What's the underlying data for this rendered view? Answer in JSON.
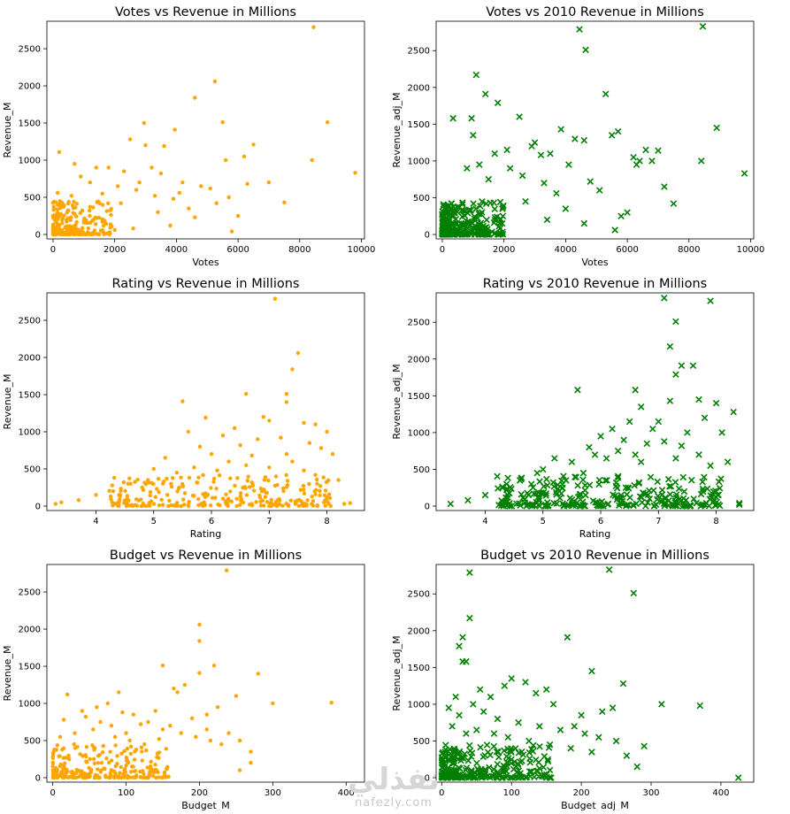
{
  "watermark": {
    "arabic": "نفذلي",
    "latin": "nafezly.com"
  },
  "chart_data": [
    {
      "type": "scatter",
      "title": "Votes vs Revenue in Millions",
      "xlabel": "Votes",
      "ylabel": "Revenue_M",
      "xlim": [
        -200,
        10100
      ],
      "ylim": [
        -60,
        2870
      ],
      "xticks": [
        0,
        2000,
        4000,
        6000,
        8000,
        10000
      ],
      "yticks": [
        0,
        500,
        1000,
        1500,
        2000,
        2500
      ],
      "marker": "dot",
      "color": "#ffa500",
      "points": [
        [
          8450,
          2790
        ],
        [
          5250,
          2060
        ],
        [
          4600,
          1840
        ],
        [
          8900,
          1510
        ],
        [
          5500,
          1510
        ],
        [
          2950,
          1500
        ],
        [
          3950,
          1410
        ],
        [
          6500,
          1210
        ],
        [
          2500,
          1280
        ],
        [
          3000,
          1200
        ],
        [
          3600,
          1190
        ],
        [
          7000,
          700
        ],
        [
          9800,
          830
        ],
        [
          8400,
          1000
        ],
        [
          5600,
          1000
        ],
        [
          6200,
          1050
        ],
        [
          5100,
          620
        ],
        [
          7500,
          430
        ],
        [
          5800,
          40
        ],
        [
          6000,
          250
        ],
        [
          200,
          1110
        ],
        [
          150,
          560
        ],
        [
          700,
          950
        ],
        [
          1400,
          900
        ],
        [
          1800,
          900
        ],
        [
          2300,
          850
        ],
        [
          3200,
          900
        ],
        [
          3500,
          820
        ],
        [
          4200,
          700
        ],
        [
          4800,
          650
        ],
        [
          2200,
          420
        ],
        [
          2700,
          600
        ],
        [
          3300,
          520
        ],
        [
          3900,
          480
        ],
        [
          4400,
          350
        ],
        [
          5300,
          420
        ],
        [
          2000,
          60
        ],
        [
          2600,
          80
        ],
        [
          3800,
          120
        ],
        [
          4600,
          230
        ],
        [
          5700,
          500
        ],
        [
          6300,
          680
        ],
        [
          1200,
          700
        ],
        [
          1600,
          550
        ],
        [
          900,
          780
        ],
        [
          2100,
          650
        ],
        [
          2800,
          700
        ],
        [
          3400,
          300
        ],
        [
          4100,
          560
        ],
        [
          600,
          520
        ]
      ]
    },
    {
      "type": "scatter",
      "title": "Votes vs 2010 Revenue in Millions",
      "xlabel": "Votes",
      "ylabel": "Revenue_adj_M",
      "xlim": [
        -200,
        10100
      ],
      "ylim": [
        -60,
        2900
      ],
      "xticks": [
        0,
        2000,
        4000,
        6000,
        8000,
        10000
      ],
      "yticks": [
        0,
        500,
        1000,
        1500,
        2000,
        2500
      ],
      "marker": "x",
      "color": "#008000",
      "points": [
        [
          4450,
          2790
        ],
        [
          8450,
          2830
        ],
        [
          4650,
          2510
        ],
        [
          1100,
          2170
        ],
        [
          1400,
          1910
        ],
        [
          1800,
          1790
        ],
        [
          5300,
          1910
        ],
        [
          8900,
          1450
        ],
        [
          350,
          1580
        ],
        [
          2500,
          1600
        ],
        [
          3850,
          1430
        ],
        [
          950,
          1580
        ],
        [
          1000,
          1350
        ],
        [
          9800,
          830
        ],
        [
          8400,
          1000
        ],
        [
          7000,
          1140
        ],
        [
          6200,
          1050
        ],
        [
          4600,
          1280
        ],
        [
          5700,
          1400
        ],
        [
          7500,
          420
        ],
        [
          6400,
          1000
        ],
        [
          6600,
          1150
        ],
        [
          5600,
          60
        ],
        [
          6000,
          300
        ],
        [
          7200,
          650
        ],
        [
          3200,
          1080
        ],
        [
          2900,
          1200
        ],
        [
          3500,
          1100
        ],
        [
          2200,
          900
        ],
        [
          4100,
          950
        ],
        [
          5100,
          600
        ],
        [
          4800,
          720
        ],
        [
          3700,
          560
        ],
        [
          2600,
          800
        ],
        [
          1700,
          1100
        ],
        [
          2100,
          1150
        ],
        [
          3000,
          1250
        ],
        [
          4300,
          1300
        ],
        [
          5500,
          1350
        ],
        [
          1200,
          950
        ],
        [
          800,
          900
        ],
        [
          1500,
          750
        ],
        [
          3300,
          700
        ],
        [
          2700,
          450
        ],
        [
          6300,
          950
        ],
        [
          4000,
          350
        ],
        [
          4600,
          150
        ],
        [
          5800,
          250
        ],
        [
          6800,
          1000
        ],
        [
          3400,
          200
        ]
      ]
    },
    {
      "type": "scatter",
      "title": "Rating vs Revenue in Millions",
      "xlabel": "Rating",
      "ylabel": "Revenue_M",
      "xlim": [
        3.15,
        8.65
      ],
      "ylim": [
        -60,
        2870
      ],
      "xticks": [
        4,
        5,
        6,
        7,
        8
      ],
      "yticks": [
        0,
        500,
        1000,
        1500,
        2000,
        2500
      ],
      "marker": "dot",
      "color": "#ffa500",
      "points": [
        [
          7.1,
          2790
        ],
        [
          7.5,
          2060
        ],
        [
          7.4,
          1840
        ],
        [
          6.6,
          1510
        ],
        [
          7.3,
          1510
        ],
        [
          5.5,
          1410
        ],
        [
          7.3,
          1400
        ],
        [
          5.9,
          1190
        ],
        [
          6.9,
          1200
        ],
        [
          7.0,
          1150
        ],
        [
          7.6,
          1120
        ],
        [
          6.4,
          1050
        ],
        [
          7.8,
          1100
        ],
        [
          8.0,
          1000
        ],
        [
          5.6,
          1000
        ],
        [
          6.2,
          950
        ],
        [
          6.8,
          900
        ],
        [
          7.2,
          920
        ],
        [
          7.7,
          850
        ],
        [
          5.8,
          800
        ],
        [
          6.5,
          820
        ],
        [
          7.9,
          780
        ],
        [
          8.1,
          700
        ],
        [
          5.2,
          650
        ],
        [
          6.0,
          700
        ],
        [
          4.9,
          350
        ],
        [
          4.6,
          300
        ],
        [
          4.3,
          200
        ],
        [
          4.0,
          150
        ],
        [
          3.7,
          80
        ],
        [
          3.4,
          50
        ],
        [
          3.3,
          30
        ],
        [
          8.4,
          40
        ],
        [
          8.3,
          30
        ],
        [
          5.0,
          500
        ],
        [
          6.3,
          600
        ],
        [
          6.7,
          680
        ],
        [
          7.0,
          520
        ],
        [
          7.4,
          600
        ],
        [
          7.6,
          480
        ],
        [
          5.4,
          450
        ],
        [
          5.7,
          520
        ],
        [
          6.1,
          480
        ],
        [
          6.6,
          550
        ],
        [
          7.3,
          700
        ],
        [
          7.8,
          420
        ],
        [
          8.2,
          350
        ],
        [
          4.8,
          250
        ],
        [
          4.4,
          150
        ],
        [
          5.3,
          300
        ]
      ]
    },
    {
      "type": "scatter",
      "title": "Rating vs 2010 Revenue in Millions",
      "xlabel": "Rating",
      "ylabel": "Revenue_adj_M",
      "xlim": [
        3.15,
        8.65
      ],
      "ylim": [
        -60,
        2900
      ],
      "xticks": [
        4,
        5,
        6,
        7,
        8
      ],
      "yticks": [
        0,
        500,
        1000,
        1500,
        2000,
        2500
      ],
      "marker": "x",
      "color": "#008000",
      "points": [
        [
          7.1,
          2830
        ],
        [
          7.9,
          2790
        ],
        [
          7.3,
          2510
        ],
        [
          7.2,
          2170
        ],
        [
          7.4,
          1910
        ],
        [
          7.6,
          1910
        ],
        [
          7.3,
          1790
        ],
        [
          5.6,
          1580
        ],
        [
          6.6,
          1580
        ],
        [
          7.7,
          1450
        ],
        [
          8.0,
          1400
        ],
        [
          8.3,
          1280
        ],
        [
          6.7,
          1350
        ],
        [
          7.2,
          1430
        ],
        [
          6.5,
          1150
        ],
        [
          7.0,
          1150
        ],
        [
          7.8,
          1200
        ],
        [
          6.2,
          1050
        ],
        [
          6.9,
          1050
        ],
        [
          7.5,
          1000
        ],
        [
          8.1,
          1000
        ],
        [
          6.0,
          950
        ],
        [
          6.4,
          900
        ],
        [
          7.1,
          880
        ],
        [
          5.8,
          800
        ],
        [
          6.8,
          850
        ],
        [
          7.4,
          820
        ],
        [
          5.2,
          650
        ],
        [
          5.9,
          700
        ],
        [
          6.3,
          750
        ],
        [
          6.6,
          700
        ],
        [
          7.7,
          700
        ],
        [
          8.2,
          600
        ],
        [
          4.9,
          450
        ],
        [
          4.6,
          350
        ],
        [
          4.3,
          250
        ],
        [
          4.0,
          150
        ],
        [
          3.7,
          80
        ],
        [
          3.4,
          30
        ],
        [
          8.4,
          40
        ],
        [
          8.4,
          20
        ],
        [
          5.0,
          500
        ],
        [
          5.5,
          600
        ],
        [
          6.1,
          650
        ],
        [
          6.7,
          600
        ],
        [
          7.3,
          650
        ],
        [
          7.9,
          550
        ],
        [
          5.4,
          350
        ],
        [
          5.7,
          450
        ],
        [
          4.8,
          300
        ]
      ]
    },
    {
      "type": "scatter",
      "title": "Budget vs Revenue in Millions",
      "xlabel": "Budget_M",
      "ylabel": "Revenue_M",
      "xlim": [
        -8,
        425
      ],
      "ylim": [
        -60,
        2870
      ],
      "xticks": [
        0,
        100,
        200,
        300,
        400
      ],
      "yticks": [
        0,
        500,
        1000,
        1500,
        2000,
        2500
      ],
      "marker": "dot",
      "color": "#ffa500",
      "points": [
        [
          237,
          2790
        ],
        [
          200,
          2060
        ],
        [
          200,
          1840
        ],
        [
          150,
          1510
        ],
        [
          220,
          1510
        ],
        [
          200,
          1410
        ],
        [
          280,
          1400
        ],
        [
          180,
          1250
        ],
        [
          165,
          1200
        ],
        [
          90,
          1150
        ],
        [
          170,
          1150
        ],
        [
          250,
          1100
        ],
        [
          380,
          1010
        ],
        [
          300,
          1000
        ],
        [
          225,
          950
        ],
        [
          210,
          850
        ],
        [
          190,
          800
        ],
        [
          140,
          900
        ],
        [
          110,
          850
        ],
        [
          130,
          750
        ],
        [
          160,
          700
        ],
        [
          210,
          650
        ],
        [
          240,
          600
        ],
        [
          255,
          500
        ],
        [
          270,
          350
        ],
        [
          255,
          100
        ],
        [
          270,
          200
        ],
        [
          20,
          1120
        ],
        [
          40,
          900
        ],
        [
          60,
          950
        ],
        [
          75,
          1000
        ],
        [
          95,
          880
        ],
        [
          120,
          720
        ],
        [
          150,
          650
        ],
        [
          175,
          600
        ],
        [
          195,
          550
        ],
        [
          215,
          500
        ],
        [
          230,
          450
        ],
        [
          100,
          600
        ],
        [
          80,
          700
        ],
        [
          55,
          650
        ],
        [
          30,
          600
        ],
        [
          10,
          550
        ],
        [
          15,
          780
        ],
        [
          45,
          820
        ],
        [
          65,
          750
        ],
        [
          85,
          550
        ],
        [
          105,
          500
        ],
        [
          125,
          450
        ],
        [
          145,
          520
        ]
      ]
    },
    {
      "type": "scatter",
      "title": "Budget vs 2010 Revenue in Millions",
      "xlabel": "Budget_adj_M",
      "ylabel": "Revenue_adj_M",
      "xlim": [
        -8,
        447
      ],
      "ylim": [
        -60,
        2900
      ],
      "xticks": [
        0,
        100,
        200,
        300,
        400
      ],
      "yticks": [
        0,
        500,
        1000,
        1500,
        2000,
        2500
      ],
      "marker": "x",
      "color": "#008000",
      "points": [
        [
          240,
          2830
        ],
        [
          40,
          2790
        ],
        [
          275,
          2510
        ],
        [
          40,
          2170
        ],
        [
          30,
          1910
        ],
        [
          180,
          1910
        ],
        [
          25,
          1790
        ],
        [
          30,
          1580
        ],
        [
          35,
          1580
        ],
        [
          215,
          1450
        ],
        [
          260,
          1280
        ],
        [
          370,
          980
        ],
        [
          315,
          1000
        ],
        [
          290,
          430
        ],
        [
          425,
          0
        ],
        [
          230,
          900
        ],
        [
          245,
          950
        ],
        [
          200,
          850
        ],
        [
          190,
          700
        ],
        [
          160,
          1000
        ],
        [
          135,
          1150
        ],
        [
          150,
          1200
        ],
        [
          120,
          1300
        ],
        [
          100,
          1350
        ],
        [
          90,
          1250
        ],
        [
          70,
          1100
        ],
        [
          55,
          1200
        ],
        [
          45,
          1000
        ],
        [
          20,
          1100
        ],
        [
          25,
          850
        ],
        [
          60,
          900
        ],
        [
          80,
          800
        ],
        [
          110,
          750
        ],
        [
          140,
          700
        ],
        [
          170,
          650
        ],
        [
          205,
          600
        ],
        [
          225,
          550
        ],
        [
          250,
          500
        ],
        [
          265,
          300
        ],
        [
          280,
          150
        ],
        [
          10,
          950
        ],
        [
          15,
          700
        ],
        [
          35,
          600
        ],
        [
          50,
          650
        ],
        [
          75,
          600
        ],
        [
          95,
          550
        ],
        [
          125,
          500
        ],
        [
          155,
          450
        ],
        [
          185,
          400
        ],
        [
          215,
          350
        ]
      ]
    }
  ]
}
